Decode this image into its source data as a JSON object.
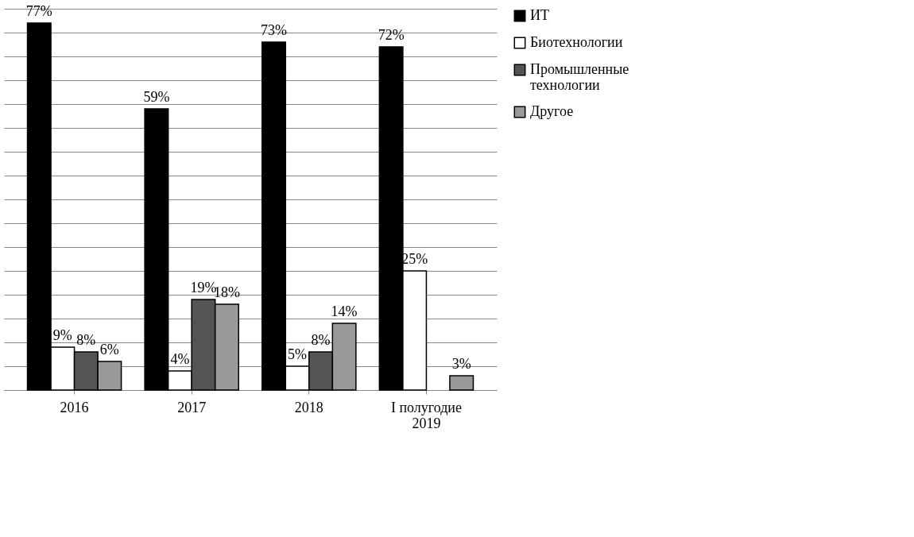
{
  "chart_data": {
    "type": "bar",
    "categories": [
      "2016",
      "2017",
      "2018",
      "I полугодие\n2019"
    ],
    "series": [
      {
        "name": "ИТ",
        "color": "#000000",
        "values": [
          77,
          59,
          73,
          72
        ],
        "value_labels": [
          "77%",
          "59%",
          "73%",
          "72%"
        ]
      },
      {
        "name": "Биотехнологии",
        "color": "#ffffff",
        "values": [
          9,
          4,
          5,
          25
        ],
        "value_labels": [
          "9%",
          "4%",
          "5%",
          "25%"
        ]
      },
      {
        "name": "Промышленные\nтехнологии",
        "color": "#555555",
        "values": [
          8,
          19,
          8,
          null
        ],
        "value_labels": [
          "8%",
          "19%",
          "8%",
          null
        ]
      },
      {
        "name": "Другое",
        "color": "#999999",
        "values": [
          6,
          18,
          14,
          3
        ],
        "value_labels": [
          "6%",
          "18%",
          "14%",
          "3%"
        ]
      }
    ],
    "tick_labels": "x",
    "grid": "y",
    "legend": "right"
  }
}
